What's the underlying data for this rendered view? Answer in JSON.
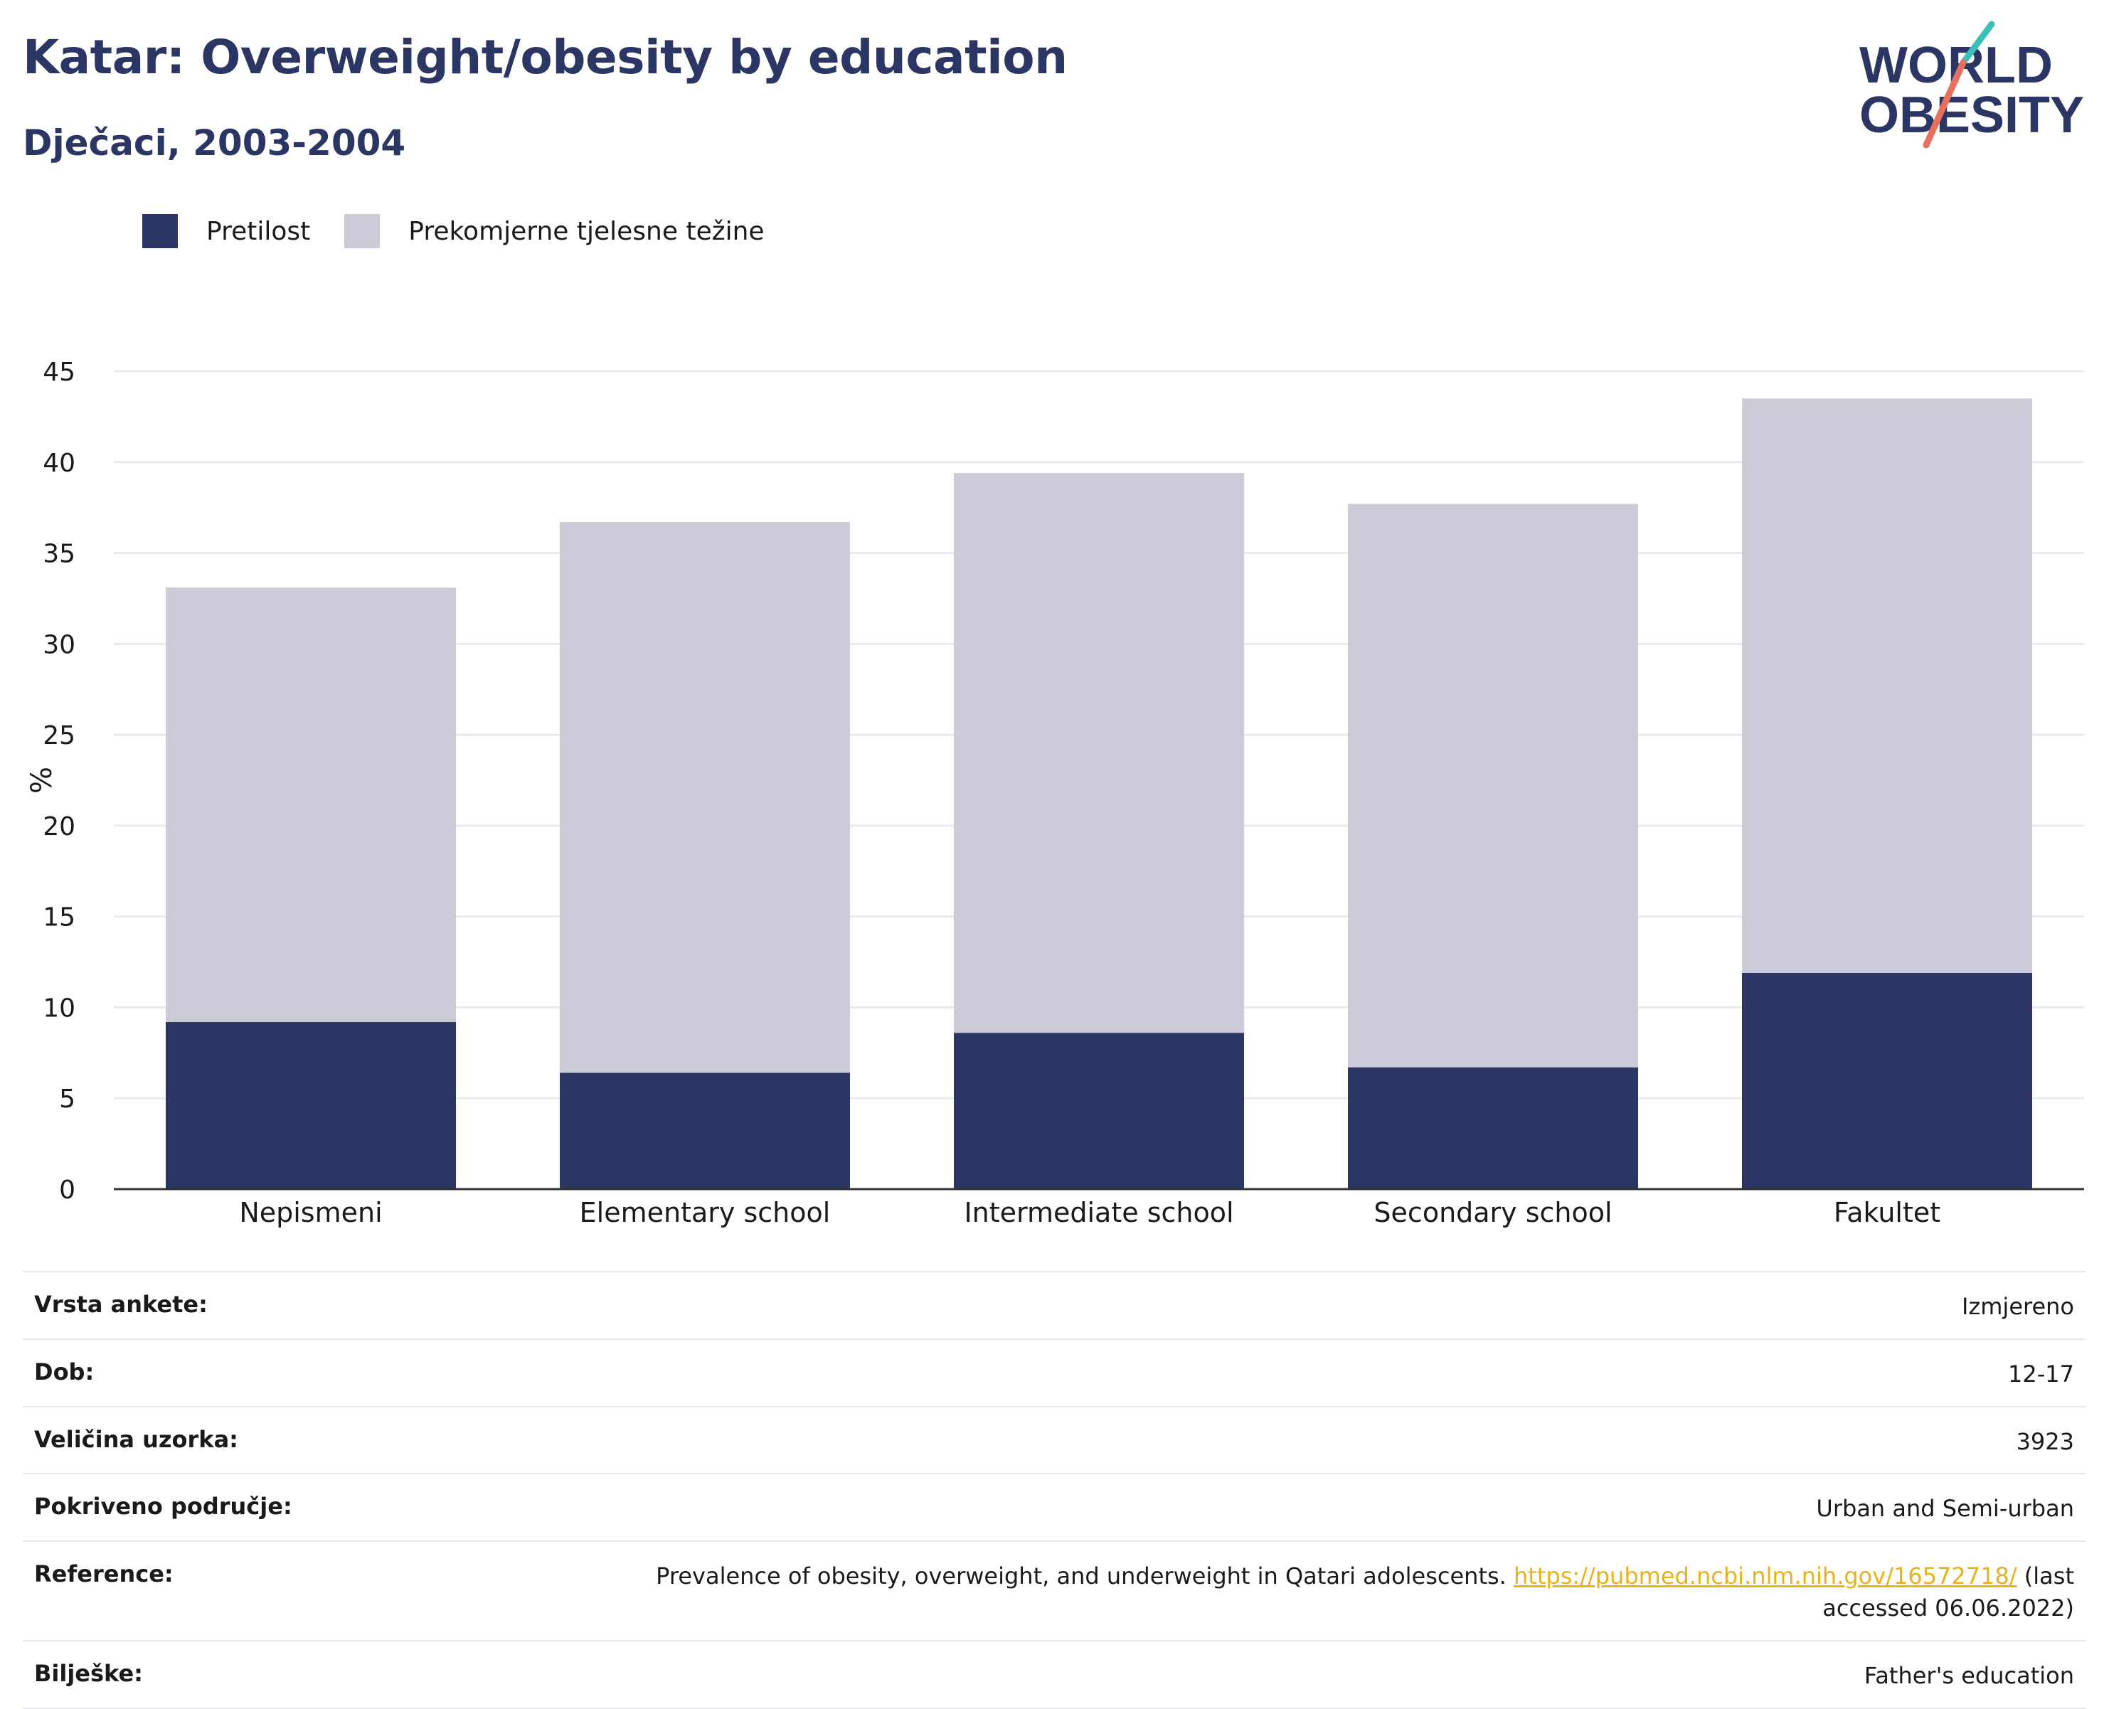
{
  "header": {
    "title": "Katar: Overweight/obesity by education",
    "subtitle": "Dječaci, 2003-2004"
  },
  "logo": {
    "line1": "WORLD",
    "line2": "OBESITY",
    "colors": {
      "text": "#2b3664",
      "slash_teal": "#3bbfb8",
      "slash_coral": "#e8705e"
    }
  },
  "colors": {
    "obesity": "#2b3664",
    "overweight": "#cacbd6",
    "grid": "#e9eaef",
    "axis": "#333333",
    "link": "#e8b21a"
  },
  "chart_data": {
    "type": "bar",
    "stacked": true,
    "categories": [
      "Nepismeni",
      "Elementary school",
      "Intermediate school",
      "Secondary school",
      "Fakultet"
    ],
    "series": [
      {
        "name": "Pretilost",
        "values": [
          9.2,
          6.4,
          8.6,
          6.7,
          11.9
        ]
      },
      {
        "name": "Prekomjerne tjelesne težine",
        "values": [
          23.9,
          30.3,
          30.8,
          31.0,
          31.6
        ]
      }
    ],
    "ylabel": "%",
    "ylim": [
      0,
      45
    ],
    "yticks": [
      0,
      5,
      10,
      15,
      20,
      25,
      30,
      35,
      40,
      45
    ],
    "grid": true,
    "legend_position": "top-left"
  },
  "meta": {
    "rows": [
      {
        "label": "Vrsta ankete:",
        "value": "Izmjereno"
      },
      {
        "label": "Dob:",
        "value": "12-17"
      },
      {
        "label": "Veličina uzorka:",
        "value": "3923"
      },
      {
        "label": "Pokriveno područje:",
        "value": "Urban and Semi-urban"
      },
      {
        "label": "Reference:",
        "value_before": "Prevalence of obesity, overweight, and underweight in Qatari adolescents.",
        "link": "https://pubmed.ncbi.nlm.nih.gov/16572718/",
        "value_after": "(last accessed 06.06.2022)"
      },
      {
        "label": "Bilješke:",
        "value": "Father's education"
      }
    ]
  }
}
